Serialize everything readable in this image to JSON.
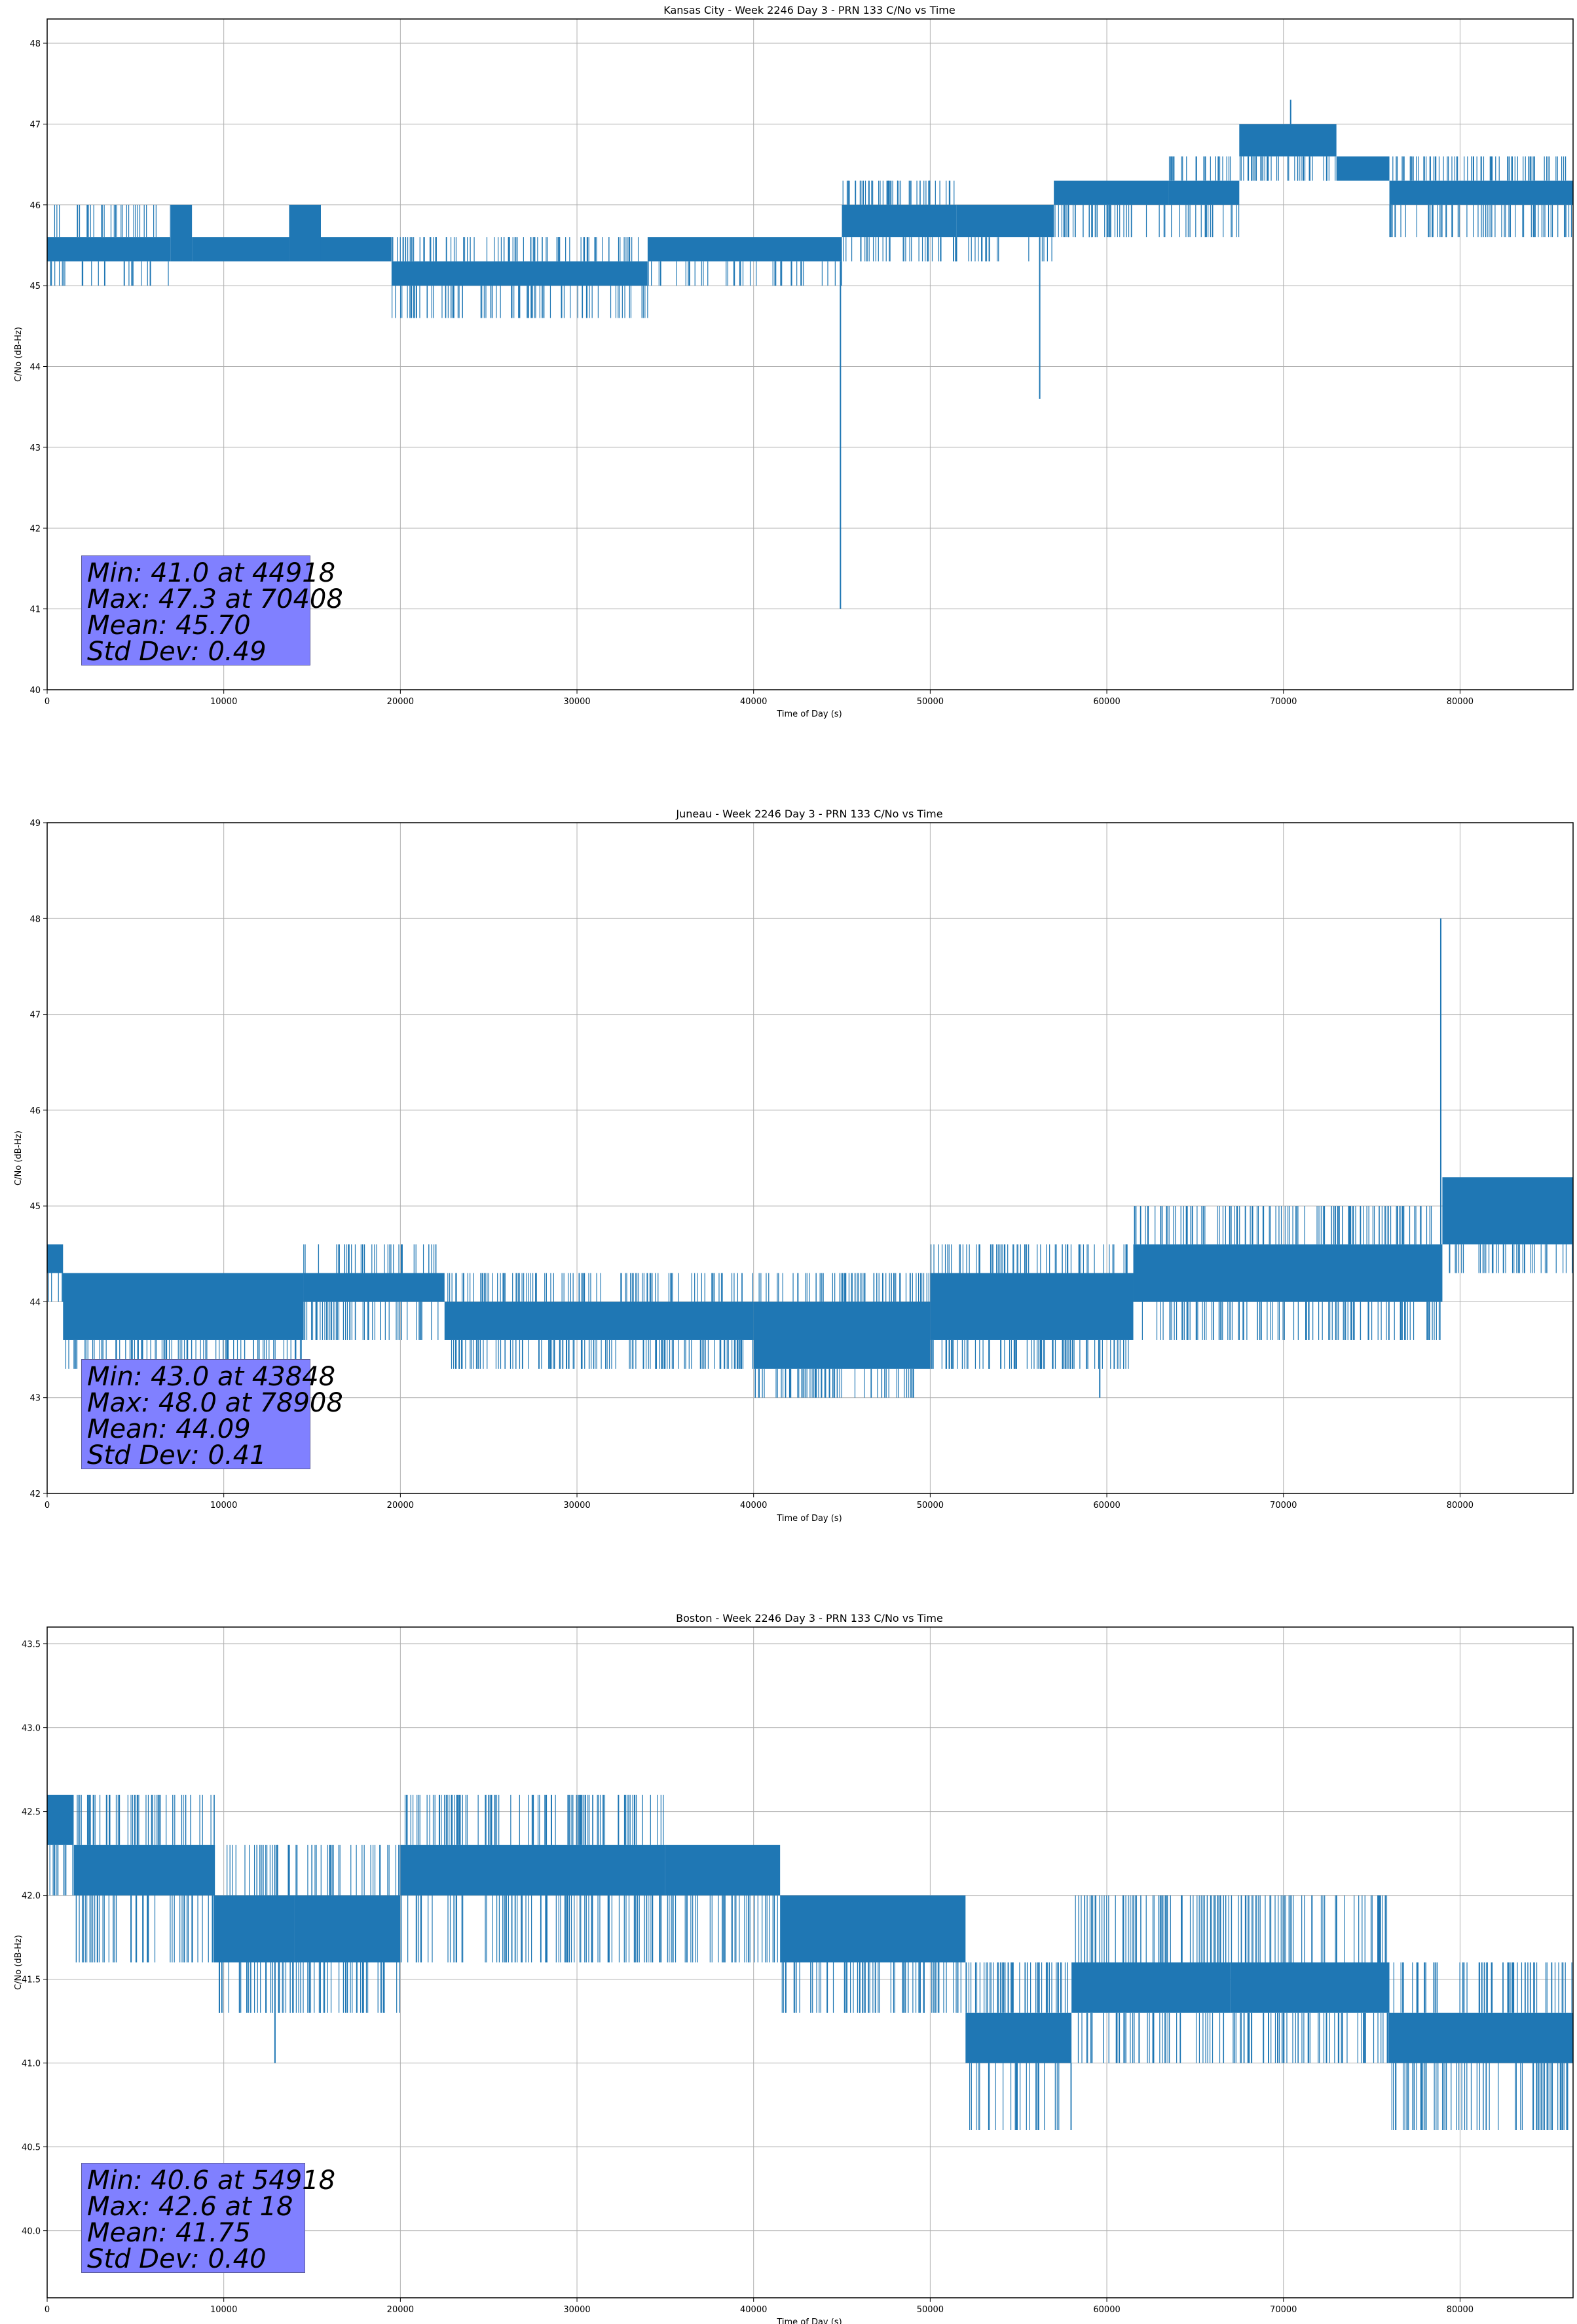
{
  "figure": {
    "line_color": "#1f77b4",
    "stats_box_color": "#8080ff",
    "grid": true
  },
  "chart_data": [
    {
      "type": "line",
      "title": "Kansas City - Week 2246 Day 3 - PRN 133 C/No vs Time",
      "xlabel": "Time of Day (s)",
      "ylabel": "C/No (dB-Hz)",
      "xlim": [
        0,
        86400
      ],
      "ylim": [
        40,
        48.3
      ],
      "xticks": [
        0,
        10000,
        20000,
        30000,
        40000,
        50000,
        60000,
        70000,
        80000
      ],
      "yticks": [
        40,
        41,
        42,
        43,
        44,
        45,
        46,
        47,
        48
      ],
      "ytick_labels": [
        "40",
        "41",
        "42",
        "43",
        "44",
        "45",
        "46",
        "47",
        "48"
      ],
      "stats": [
        "Min: 41.0 at 44918",
        "Max: 47.3 at 70408",
        "Mean: 45.70",
        "Std Dev: 0.49"
      ],
      "segments": [
        {
          "x0": 0,
          "x1": 7000,
          "base": [
            45.3,
            45.6
          ],
          "spikes": [
            45.0,
            46.0
          ],
          "density": 0.3
        },
        {
          "x0": 7000,
          "x1": 8200,
          "base": [
            45.3,
            46.0
          ],
          "spikes": [
            45.3,
            46.0
          ],
          "density": 0.5
        },
        {
          "x0": 8200,
          "x1": 13700,
          "base": [
            45.3,
            45.6
          ],
          "spikes": [
            45.3,
            45.6
          ],
          "density": 0.2
        },
        {
          "x0": 13700,
          "x1": 15500,
          "base": [
            45.3,
            46.0
          ],
          "spikes": [
            45.3,
            46.0
          ],
          "density": 0.5
        },
        {
          "x0": 15500,
          "x1": 19500,
          "base": [
            45.3,
            45.6
          ],
          "spikes": [
            45.3,
            45.6
          ],
          "density": 0.2
        },
        {
          "x0": 19500,
          "x1": 34000,
          "base": [
            45.0,
            45.3
          ],
          "spikes": [
            44.6,
            45.6
          ],
          "density": 0.45
        },
        {
          "x0": 34000,
          "x1": 45000,
          "base": [
            45.3,
            45.6
          ],
          "spikes": [
            45.0,
            45.6
          ],
          "density": 0.3
        },
        {
          "x0": 45000,
          "x1": 51500,
          "base": [
            45.6,
            46.0
          ],
          "spikes": [
            45.3,
            46.3
          ],
          "density": 0.5
        },
        {
          "x0": 51500,
          "x1": 57000,
          "base": [
            45.6,
            46.0
          ],
          "spikes": [
            45.3,
            46.0
          ],
          "density": 0.3
        },
        {
          "x0": 57000,
          "x1": 63500,
          "base": [
            46.0,
            46.3
          ],
          "spikes": [
            45.6,
            46.3
          ],
          "density": 0.5
        },
        {
          "x0": 63500,
          "x1": 67500,
          "base": [
            46.0,
            46.3
          ],
          "spikes": [
            45.6,
            46.6
          ],
          "density": 0.4
        },
        {
          "x0": 67500,
          "x1": 73000,
          "base": [
            46.6,
            47.0
          ],
          "spikes": [
            46.3,
            47.0
          ],
          "density": 0.5
        },
        {
          "x0": 73000,
          "x1": 76000,
          "base": [
            46.3,
            46.6
          ],
          "spikes": [
            46.3,
            46.6
          ],
          "density": 0.3
        },
        {
          "x0": 76000,
          "x1": 86400,
          "base": [
            46.0,
            46.3
          ],
          "spikes": [
            45.6,
            46.6
          ],
          "density": 0.5
        }
      ],
      "events": [
        {
          "x": 44918,
          "y": 41.0
        },
        {
          "x": 56200,
          "y": 43.6
        },
        {
          "x": 70408,
          "y": 47.3
        }
      ]
    },
    {
      "type": "line",
      "title": "Juneau - Week 2246 Day 3 - PRN 133 C/No vs Time",
      "xlabel": "Time of Day (s)",
      "ylabel": "C/No (dB-Hz)",
      "xlim": [
        0,
        86400
      ],
      "ylim": [
        42,
        49
      ],
      "xticks": [
        0,
        10000,
        20000,
        30000,
        40000,
        50000,
        60000,
        70000,
        80000
      ],
      "yticks": [
        42,
        43,
        44,
        45,
        46,
        47,
        48,
        49
      ],
      "ytick_labels": [
        "42",
        "43",
        "44",
        "45",
        "46",
        "47",
        "48",
        "49"
      ],
      "stats": [
        "Min: 43.0 at 43848",
        "Max: 48.0 at 78908",
        "Mean: 44.09",
        "Std Dev: 0.41"
      ],
      "segments": [
        {
          "x0": 0,
          "x1": 900,
          "base": [
            44.3,
            44.6
          ],
          "spikes": [
            44.0,
            44.6
          ],
          "density": 0.3
        },
        {
          "x0": 900,
          "x1": 14500,
          "base": [
            43.6,
            44.3
          ],
          "spikes": [
            43.3,
            44.3
          ],
          "density": 0.5
        },
        {
          "x0": 14500,
          "x1": 22500,
          "base": [
            44.0,
            44.3
          ],
          "spikes": [
            43.6,
            44.6
          ],
          "density": 0.45
        },
        {
          "x0": 22500,
          "x1": 40000,
          "base": [
            43.6,
            44.0
          ],
          "spikes": [
            43.3,
            44.3
          ],
          "density": 0.5
        },
        {
          "x0": 40000,
          "x1": 50000,
          "base": [
            43.3,
            44.0
          ],
          "spikes": [
            43.0,
            44.3
          ],
          "density": 0.5
        },
        {
          "x0": 50000,
          "x1": 61500,
          "base": [
            43.6,
            44.3
          ],
          "spikes": [
            43.3,
            44.6
          ],
          "density": 0.5
        },
        {
          "x0": 61500,
          "x1": 79000,
          "base": [
            44.0,
            44.6
          ],
          "spikes": [
            43.6,
            45.0
          ],
          "density": 0.5
        },
        {
          "x0": 79000,
          "x1": 86400,
          "base": [
            44.6,
            45.3
          ],
          "spikes": [
            44.3,
            45.3
          ],
          "density": 0.5
        }
      ],
      "events": [
        {
          "x": 43848,
          "y": 43.0
        },
        {
          "x": 78908,
          "y": 48.0
        },
        {
          "x": 59600,
          "y": 43.0
        }
      ]
    },
    {
      "type": "line",
      "title": "Boston - Week 2246 Day 3 - PRN 133 C/No vs Time",
      "xlabel": "Time of Day (s)",
      "ylabel": "C/No (dB-Hz)",
      "xlim": [
        0,
        86400
      ],
      "ylim": [
        39.6,
        43.6
      ],
      "xticks": [
        0,
        10000,
        20000,
        30000,
        40000,
        50000,
        60000,
        70000,
        80000
      ],
      "yticks": [
        40.0,
        40.5,
        41.0,
        41.5,
        42.0,
        42.5,
        43.0,
        43.5
      ],
      "ytick_labels": [
        "40.0",
        "40.5",
        "41.0",
        "41.5",
        "42.0",
        "42.5",
        "43.0",
        "43.5"
      ],
      "stats": [
        "Min: 40.6 at 54918",
        "Max: 42.6 at 18",
        "Mean: 41.75",
        "Std Dev: 0.40"
      ],
      "segments": [
        {
          "x0": 0,
          "x1": 1500,
          "base": [
            42.3,
            42.6
          ],
          "spikes": [
            42.0,
            42.6
          ],
          "density": 0.5
        },
        {
          "x0": 1500,
          "x1": 9500,
          "base": [
            42.0,
            42.3
          ],
          "spikes": [
            41.6,
            42.6
          ],
          "density": 0.5
        },
        {
          "x0": 9500,
          "x1": 14000,
          "base": [
            41.6,
            42.0
          ],
          "spikes": [
            41.3,
            42.3
          ],
          "density": 0.5
        },
        {
          "x0": 14000,
          "x1": 20000,
          "base": [
            41.6,
            42.0
          ],
          "spikes": [
            41.3,
            42.3
          ],
          "density": 0.45
        },
        {
          "x0": 20000,
          "x1": 35000,
          "base": [
            42.0,
            42.3
          ],
          "spikes": [
            41.6,
            42.6
          ],
          "density": 0.5
        },
        {
          "x0": 35000,
          "x1": 41500,
          "base": [
            42.0,
            42.3
          ],
          "spikes": [
            41.6,
            42.3
          ],
          "density": 0.45
        },
        {
          "x0": 41500,
          "x1": 52000,
          "base": [
            41.6,
            42.0
          ],
          "spikes": [
            41.3,
            42.0
          ],
          "density": 0.5
        },
        {
          "x0": 52000,
          "x1": 58000,
          "base": [
            41.0,
            41.3
          ],
          "spikes": [
            40.6,
            41.6
          ],
          "density": 0.5
        },
        {
          "x0": 58000,
          "x1": 67000,
          "base": [
            41.3,
            41.6
          ],
          "spikes": [
            41.0,
            42.0
          ],
          "density": 0.5
        },
        {
          "x0": 67000,
          "x1": 76000,
          "base": [
            41.3,
            41.6
          ],
          "spikes": [
            41.0,
            42.0
          ],
          "density": 0.5
        },
        {
          "x0": 76000,
          "x1": 86400,
          "base": [
            41.0,
            41.3
          ],
          "spikes": [
            40.6,
            41.6
          ],
          "density": 0.5
        }
      ],
      "events": [
        {
          "x": 54918,
          "y": 40.6
        },
        {
          "x": 18,
          "y": 42.6
        },
        {
          "x": 12900,
          "y": 41.0
        }
      ]
    }
  ]
}
